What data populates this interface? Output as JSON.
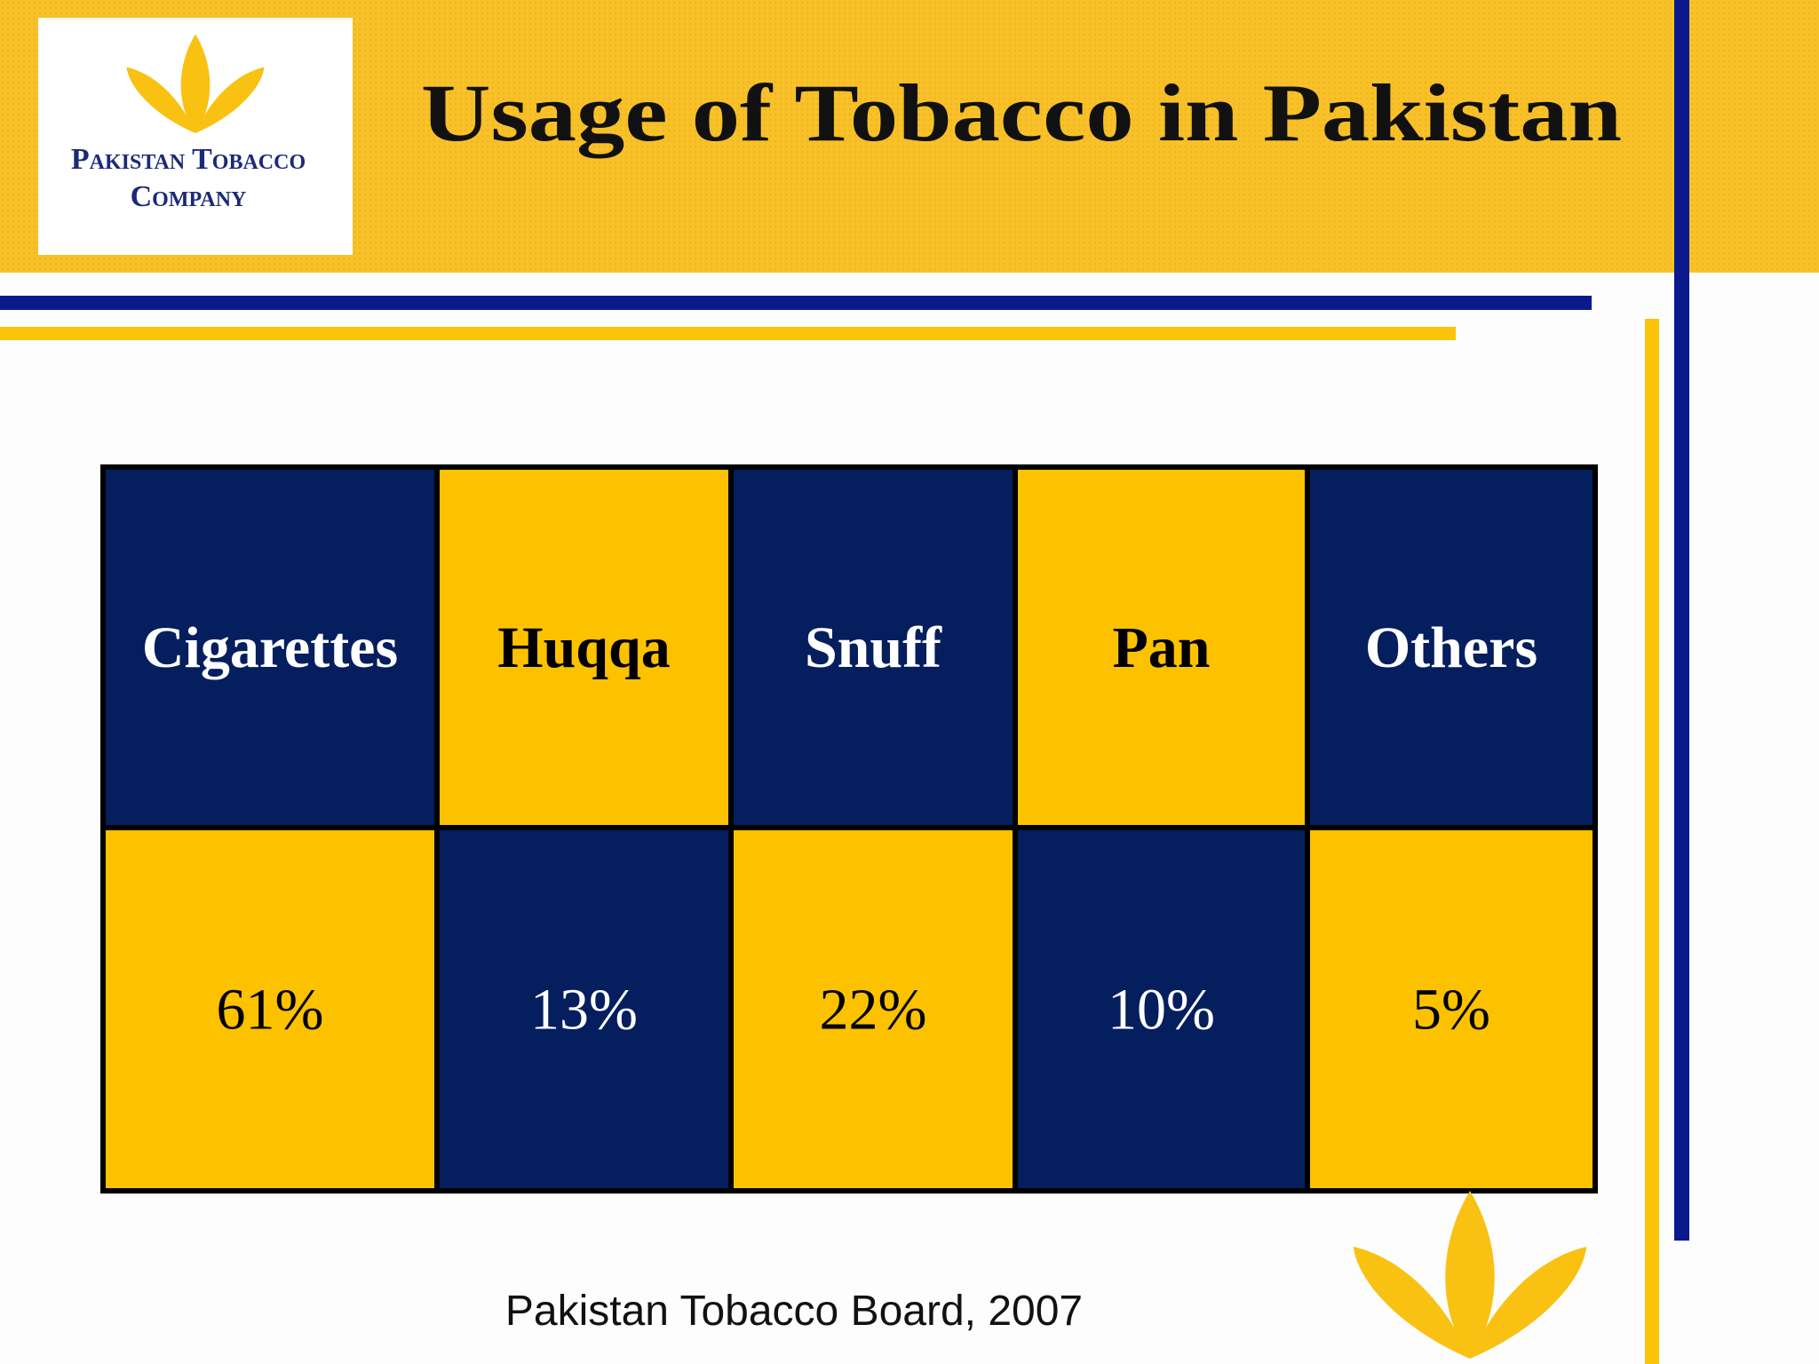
{
  "header": {
    "logo": {
      "line1": "Pakistan Tobacco",
      "line2": "Company"
    },
    "title": "Usage of Tobacco in Pakistan"
  },
  "table": {
    "rows": [
      [
        "Cigarettes",
        "Huqqa",
        "Snuff",
        "Pan",
        "Others"
      ],
      [
        "61%",
        "13%",
        "22%",
        "10%",
        "5%"
      ]
    ]
  },
  "source": "Pakistan Tobacco Board, 2007"
}
